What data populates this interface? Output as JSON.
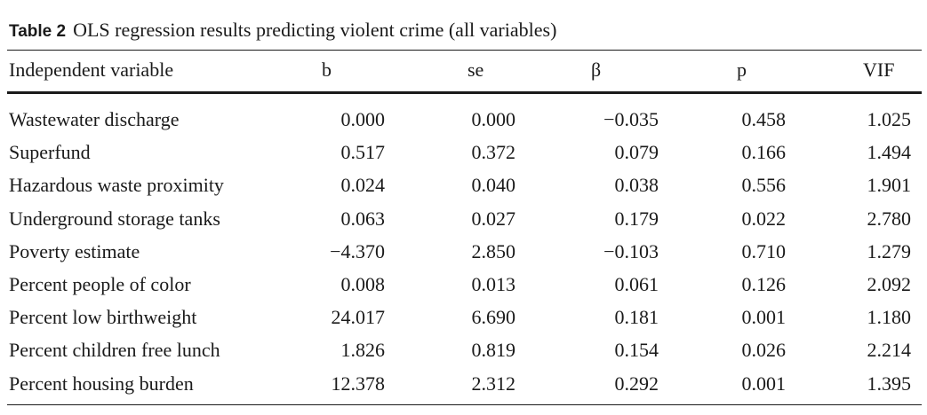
{
  "caption": {
    "label": "Table 2",
    "text": "OLS regression results predicting violent crime (all variables)"
  },
  "headers": {
    "variable": "Independent variable",
    "b": "b",
    "se": "se",
    "beta": "β",
    "p": "p",
    "vif": "VIF"
  },
  "rows": [
    {
      "variable": "Wastewater discharge",
      "b": "0.000",
      "se": "0.000",
      "beta": "−0.035",
      "p": "0.458",
      "vif": "1.025"
    },
    {
      "variable": "Superfund",
      "b": "0.517",
      "se": "0.372",
      "beta": "0.079",
      "p": "0.166",
      "vif": "1.494"
    },
    {
      "variable": "Hazardous waste proximity",
      "b": "0.024",
      "se": "0.040",
      "beta": "0.038",
      "p": "0.556",
      "vif": "1.901"
    },
    {
      "variable": "Underground storage tanks",
      "b": "0.063",
      "se": "0.027",
      "beta": "0.179",
      "p": "0.022",
      "vif": "2.780"
    },
    {
      "variable": "Poverty estimate",
      "b": "−4.370",
      "se": "2.850",
      "beta": "−0.103",
      "p": "0.710",
      "vif": "1.279"
    },
    {
      "variable": "Percent people of color",
      "b": "0.008",
      "se": "0.013",
      "beta": "0.061",
      "p": "0.126",
      "vif": "2.092"
    },
    {
      "variable": "Percent low birthweight",
      "b": "24.017",
      "se": "6.690",
      "beta": "0.181",
      "p": "0.001",
      "vif": "1.180"
    },
    {
      "variable": "Percent children free lunch",
      "b": "1.826",
      "se": "0.819",
      "beta": "0.154",
      "p": "0.026",
      "vif": "2.214"
    },
    {
      "variable": "Percent housing burden",
      "b": "12.378",
      "se": "2.312",
      "beta": "0.292",
      "p": "0.001",
      "vif": "1.395"
    }
  ]
}
